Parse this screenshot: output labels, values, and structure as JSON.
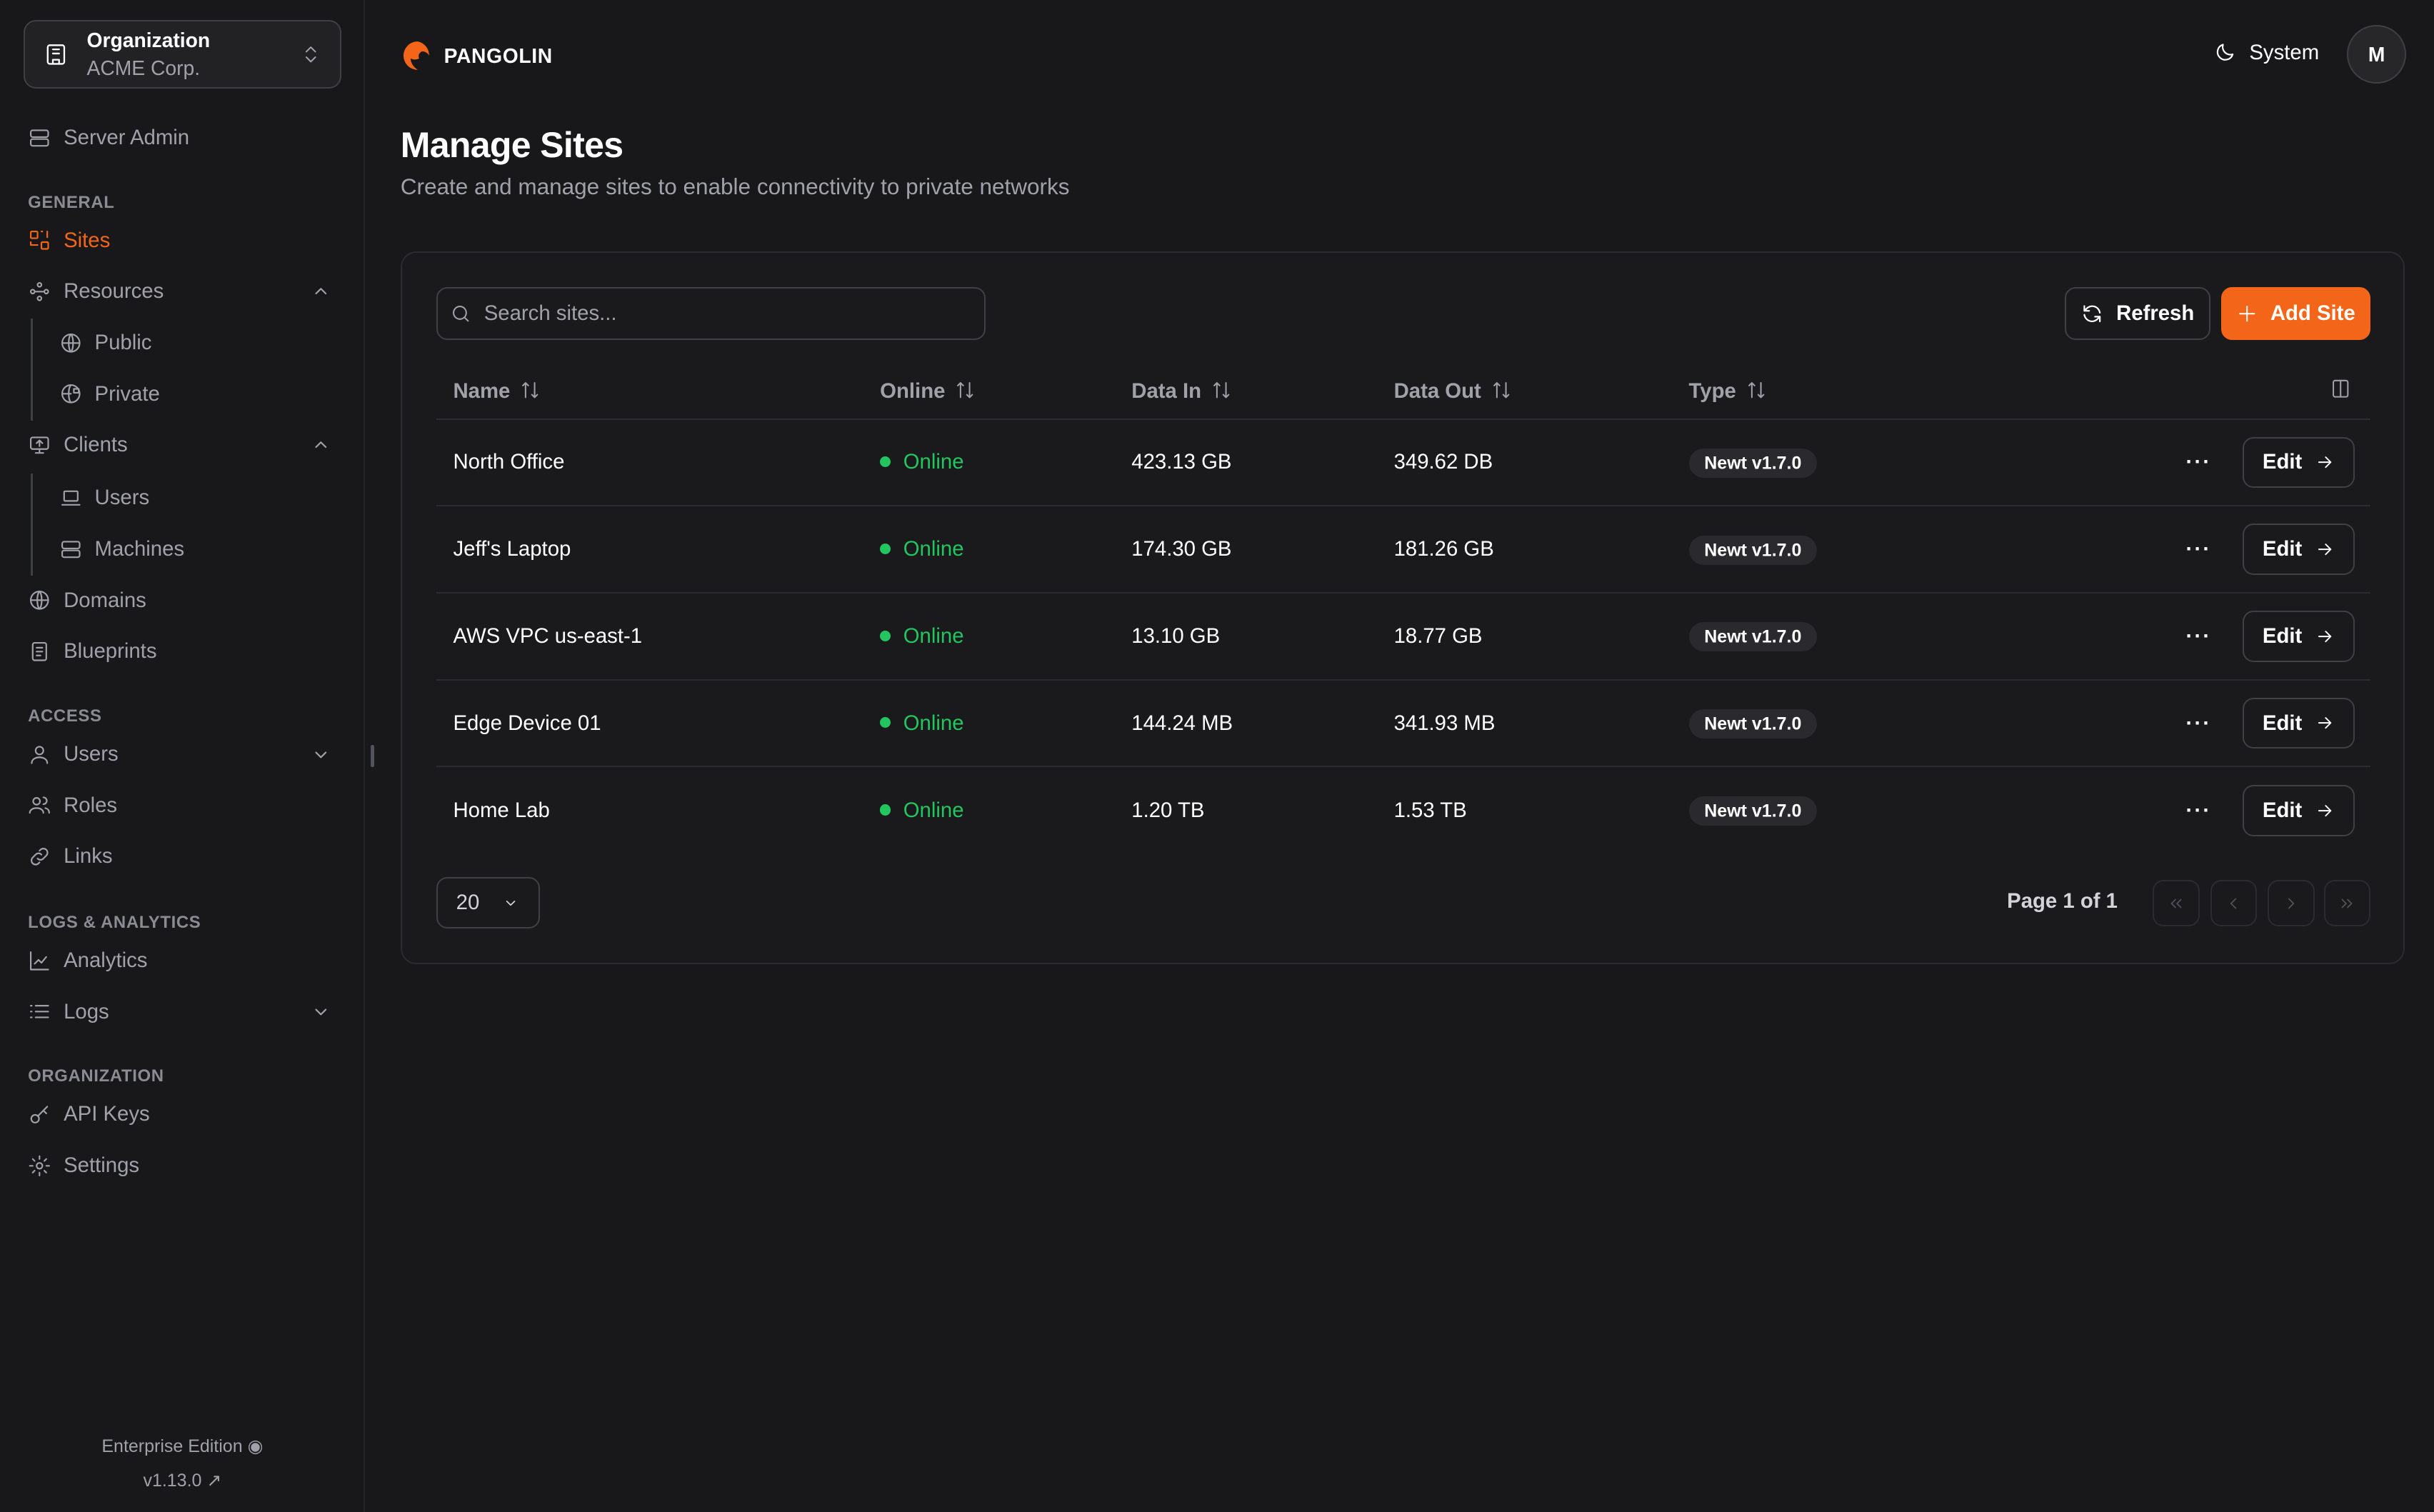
{
  "org": {
    "label": "Organization",
    "name": "ACME Corp."
  },
  "sidebar": {
    "server_admin": "Server Admin",
    "sections": {
      "general": "GENERAL",
      "access": "ACCESS",
      "logs": "LOGS & ANALYTICS",
      "organization": "ORGANIZATION"
    },
    "items": {
      "sites": "Sites",
      "resources": "Resources",
      "public": "Public",
      "private": "Private",
      "clients": "Clients",
      "users_client": "Users",
      "machines": "Machines",
      "domains": "Domains",
      "blueprints": "Blueprints",
      "users": "Users",
      "roles": "Roles",
      "links": "Links",
      "analytics": "Analytics",
      "logs": "Logs",
      "api_keys": "API Keys",
      "settings": "Settings"
    },
    "footer": {
      "edition": "Enterprise Edition",
      "version": "v1.13.0"
    }
  },
  "header": {
    "brand": "PANGOLIN",
    "theme": "System",
    "avatar": "M"
  },
  "page": {
    "title": "Manage Sites",
    "subtitle": "Create and manage sites to enable connectivity to private networks"
  },
  "toolbar": {
    "search_placeholder": "Search sites...",
    "refresh": "Refresh",
    "add": "Add Site"
  },
  "table": {
    "columns": [
      "Name",
      "Online",
      "Data In",
      "Data Out",
      "Type"
    ],
    "rows": [
      {
        "name": "North Office",
        "online": "Online",
        "data_in": "423.13 GB",
        "data_out": "349.62 DB",
        "type": "Newt v1.7.0"
      },
      {
        "name": "Jeff's Laptop",
        "online": "Online",
        "data_in": "174.30 GB",
        "data_out": "181.26 GB",
        "type": "Newt v1.7.0"
      },
      {
        "name": "AWS VPC us-east-1",
        "online": "Online",
        "data_in": "13.10 GB",
        "data_out": "18.77 GB",
        "type": "Newt v1.7.0"
      },
      {
        "name": "Edge Device 01",
        "online": "Online",
        "data_in": "144.24 MB",
        "data_out": "341.93 MB",
        "type": "Newt v1.7.0"
      },
      {
        "name": "Home Lab",
        "online": "Online",
        "data_in": "1.20 TB",
        "data_out": "1.53 TB",
        "type": "Newt v1.7.0"
      }
    ],
    "edit_label": "Edit"
  },
  "pagination": {
    "page_size": "20",
    "page_info": "Page 1 of 1"
  },
  "colors": {
    "accent": "#f36518",
    "online": "#22c55e",
    "background": "#18181b"
  }
}
